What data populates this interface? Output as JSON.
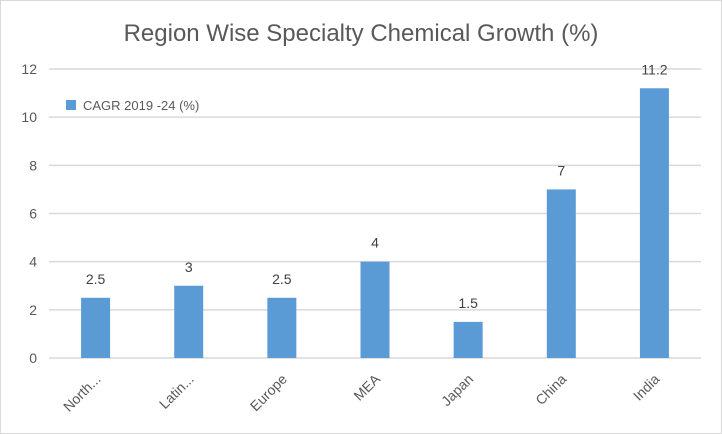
{
  "chart_data": {
    "type": "bar",
    "title": "Region Wise Specialty Chemical Growth (%)",
    "xlabel": "",
    "ylabel": "",
    "categories": [
      "North...",
      "Latin...",
      "Europe",
      "MEA",
      "Japan",
      "China",
      "India"
    ],
    "series": [
      {
        "name": "CAGR 2019 -24 (%)",
        "values": [
          2.5,
          3,
          2.5,
          4,
          1.5,
          7,
          11.2
        ],
        "color": "#5b9bd5"
      }
    ],
    "data_labels": [
      "2.5",
      "3",
      "2.5",
      "4",
      "1.5",
      "7",
      "11.2"
    ],
    "ylim": [
      0,
      12
    ],
    "yticks": [
      0,
      2,
      4,
      6,
      8,
      10,
      12
    ],
    "grid": true,
    "legend_position": "top-left",
    "gridline_color": "#d9d9d9",
    "text_color": "#595959"
  }
}
